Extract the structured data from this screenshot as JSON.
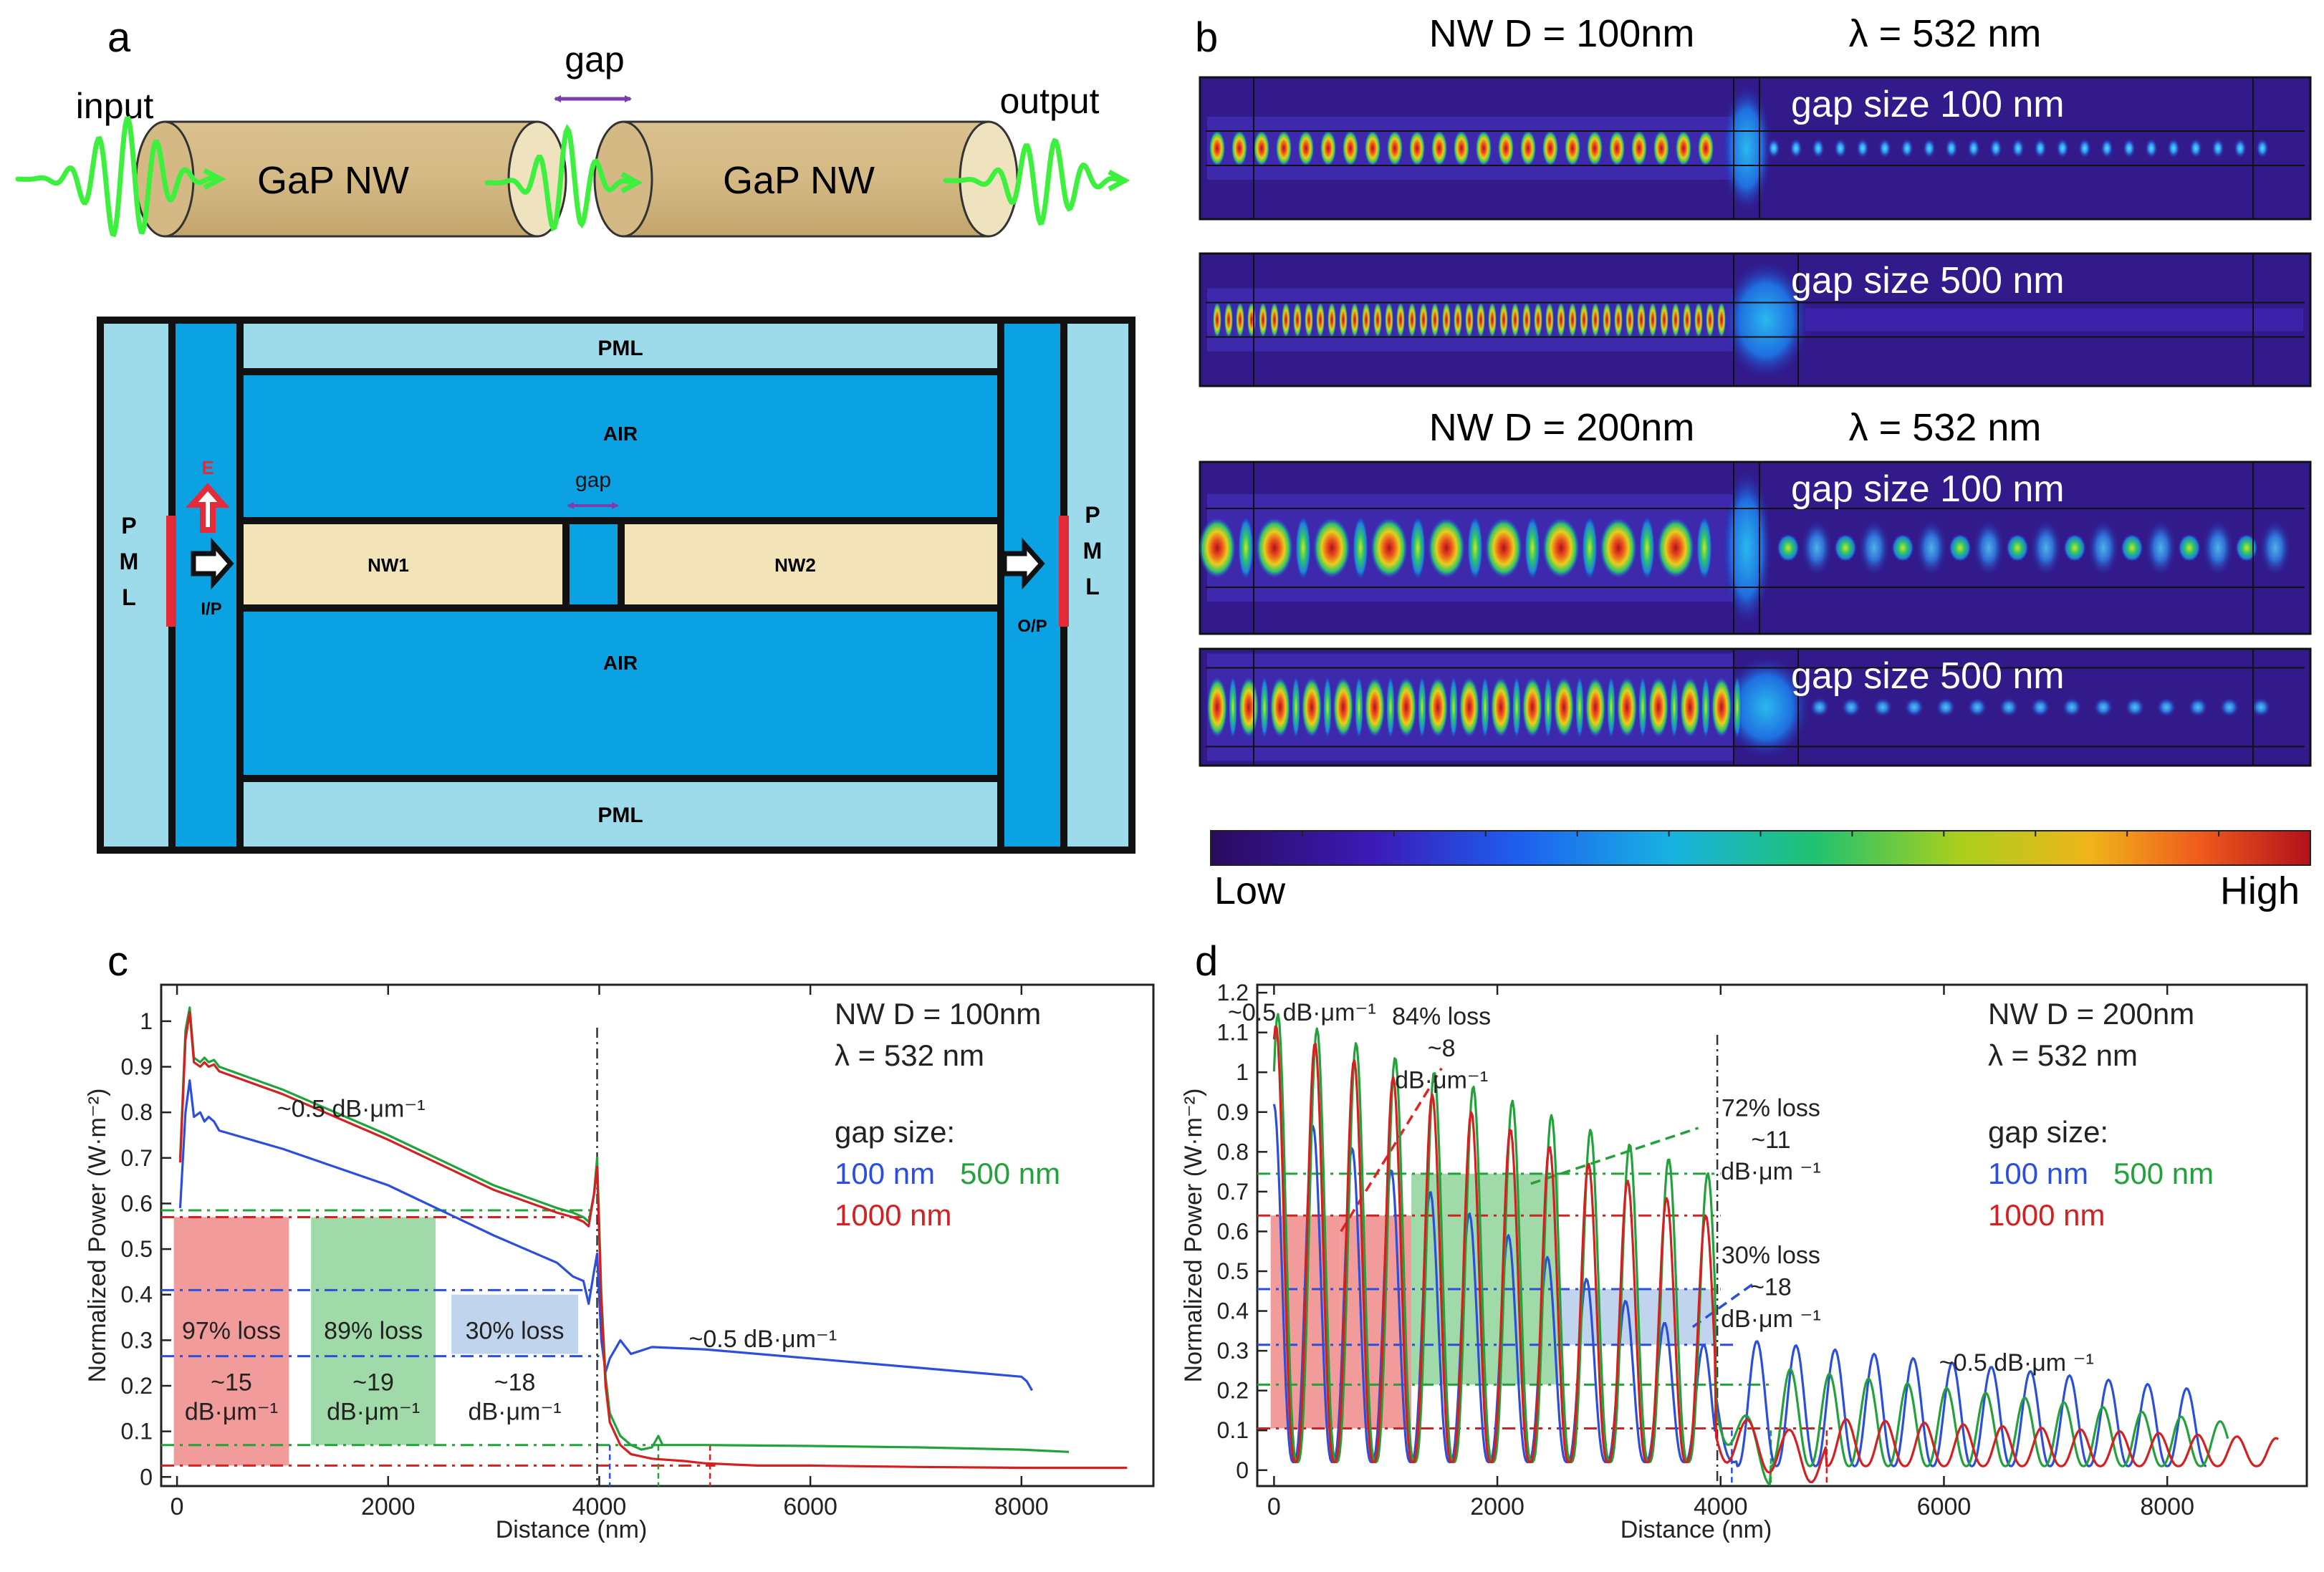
{
  "panel_labels": {
    "a": "a",
    "b": "b",
    "c": "c",
    "d": "d"
  },
  "schematic": {
    "input": "input",
    "gap": "gap",
    "output": "output",
    "nw1": "GaP NW",
    "nw2": "GaP NW"
  },
  "simulation_domain": {
    "pml_top": "PML",
    "pml_bottom": "PML",
    "pml_left": [
      "P",
      "M",
      "L"
    ],
    "pml_right": [
      "P",
      "M",
      "L"
    ],
    "air_top": "AIR",
    "air_bottom": "AIR",
    "gap": "gap",
    "nw1": "NW1",
    "nw2": "NW2",
    "e_field": "E",
    "input_port": "I/P",
    "output_port": "O/P"
  },
  "field_maps": {
    "header_100": {
      "diameter": "NW D = 100nm",
      "wavelength": "λ = 532 nm"
    },
    "header_200": {
      "diameter": "NW D = 200nm",
      "wavelength": "λ = 532 nm"
    },
    "maps": [
      {
        "label": "gap size 100 nm",
        "nw_d": 100
      },
      {
        "label": "gap size 500 nm",
        "nw_d": 100
      },
      {
        "label": "gap size 100 nm",
        "nw_d": 200
      },
      {
        "label": "gap size 500 nm",
        "nw_d": 200
      }
    ],
    "colorbar": {
      "low": "Low",
      "high": "High"
    }
  },
  "chart_data": [
    {
      "id": "c",
      "type": "line",
      "xlabel": "Distance (nm)",
      "ylabel": "Normalized Power (W·m⁻²)",
      "xlim": [
        -150,
        9250
      ],
      "ylim": [
        -0.02,
        1.08
      ],
      "xticks": [
        0,
        2000,
        4000,
        6000,
        8000
      ],
      "yticks": [
        0,
        0.1,
        0.2,
        0.3,
        0.4,
        0.5,
        0.6,
        0.7,
        0.8,
        0.9,
        1
      ],
      "info": {
        "d": "NW D = 100nm",
        "lambda": "λ = 532 nm",
        "gap_title": "gap size:",
        "g100": "100 nm",
        "g500": "500 nm",
        "g1000": "1000 nm"
      },
      "series": [
        {
          "name": "100 nm",
          "color": "#2b4fdc",
          "x": [
            30,
            80,
            120,
            160,
            220,
            260,
            300,
            350,
            400,
            1000,
            2000,
            3000,
            3600,
            3750,
            3850,
            3900,
            3950,
            3980,
            4020,
            4060,
            4100,
            4150,
            4200,
            4300,
            4500,
            5000,
            6000,
            7000,
            8000,
            8050,
            8100
          ],
          "y": [
            0.59,
            0.8,
            0.87,
            0.79,
            0.8,
            0.78,
            0.79,
            0.78,
            0.76,
            0.72,
            0.64,
            0.53,
            0.47,
            0.44,
            0.43,
            0.38,
            0.45,
            0.49,
            0.3,
            0.23,
            0.26,
            0.28,
            0.3,
            0.27,
            0.285,
            0.28,
            0.26,
            0.24,
            0.22,
            0.21,
            0.19
          ]
        },
        {
          "name": "500 nm",
          "color": "#22a23a",
          "x": [
            30,
            80,
            120,
            160,
            220,
            260,
            300,
            350,
            400,
            1000,
            2000,
            3000,
            3600,
            3750,
            3850,
            3900,
            3950,
            3980,
            4020,
            4060,
            4100,
            4200,
            4300,
            4400,
            4500,
            4560,
            4600,
            5000,
            6000,
            7000,
            8000,
            8450
          ],
          "y": [
            0.7,
            0.98,
            1.03,
            0.92,
            0.91,
            0.92,
            0.91,
            0.915,
            0.9,
            0.85,
            0.75,
            0.64,
            0.59,
            0.58,
            0.57,
            0.56,
            0.62,
            0.7,
            0.4,
            0.22,
            0.14,
            0.09,
            0.07,
            0.06,
            0.065,
            0.09,
            0.07,
            0.07,
            0.068,
            0.065,
            0.06,
            0.055
          ]
        },
        {
          "name": "1000 nm",
          "color": "#d42020",
          "x": [
            30,
            80,
            120,
            160,
            220,
            260,
            300,
            350,
            400,
            1000,
            2000,
            3000,
            3600,
            3750,
            3850,
            3900,
            3950,
            3980,
            4020,
            4060,
            4100,
            4200,
            4300,
            4500,
            4800,
            5000,
            5500,
            6000,
            7000,
            8000,
            9000
          ],
          "y": [
            0.69,
            0.96,
            1.02,
            0.91,
            0.9,
            0.91,
            0.9,
            0.905,
            0.89,
            0.84,
            0.74,
            0.63,
            0.58,
            0.57,
            0.56,
            0.55,
            0.62,
            0.68,
            0.38,
            0.2,
            0.12,
            0.07,
            0.05,
            0.04,
            0.035,
            0.03,
            0.025,
            0.025,
            0.022,
            0.02,
            0.02
          ]
        }
      ],
      "loss_boxes": [
        {
          "x0": -30,
          "x1": 1060,
          "y0": 0.025,
          "y1": 0.57,
          "color": "#f08a8a",
          "loss": "97% loss",
          "rate1": "~15",
          "rate2": "dB·μm⁻¹"
        },
        {
          "x0": 1270,
          "x1": 2450,
          "y0": 0.07,
          "y1": 0.57,
          "color": "#8fd39a",
          "loss": "89% loss",
          "rate1": "~19",
          "rate2": "dB·μm⁻¹"
        },
        {
          "x0": 2600,
          "x1": 3800,
          "y0": 0.27,
          "y1": 0.4,
          "color": "#b6cdea",
          "loss": "30% loss",
          "rate1": "~18",
          "rate2": "dB·μm⁻¹"
        }
      ],
      "annotations": [
        {
          "text": "~0.5 dB·μm⁻¹",
          "x": 1650,
          "y": 0.79
        },
        {
          "text": "~0.5 dB·μm⁻¹",
          "x": 5550,
          "y": 0.285
        }
      ]
    },
    {
      "id": "d",
      "type": "line",
      "xlabel": "Distance (nm)",
      "ylabel": "Normalized Power (W·m⁻²)",
      "xlim": [
        -150,
        9250
      ],
      "ylim": [
        -0.04,
        1.22
      ],
      "xticks": [
        0,
        2000,
        4000,
        6000,
        8000
      ],
      "yticks": [
        0,
        0.1,
        0.2,
        0.3,
        0.4,
        0.5,
        0.6,
        0.7,
        0.8,
        0.9,
        1,
        1.1,
        1.2
      ],
      "info": {
        "d": "NW D = 200nm",
        "lambda": "λ = 532 nm",
        "gap_title": "gap size:",
        "g100": "100 nm",
        "g500": "500 nm",
        "g1000": "1000 nm"
      },
      "series": [
        {
          "name": "100 nm",
          "color": "#2b4fdc",
          "period": 350,
          "before": [
            0.92,
            0.3
          ],
          "after_start": 4150,
          "after": [
            0.33,
            0.2
          ],
          "after_end": 8350,
          "phase": 0
        },
        {
          "name": "500 nm",
          "color": "#22a23a",
          "period": 350,
          "before": [
            1.15,
            0.74
          ],
          "after_start": 4450,
          "after": [
            0.26,
            0.12
          ],
          "after_end": 8550,
          "phase": 0.1
        },
        {
          "name": "1000 nm",
          "color": "#d42020",
          "period": 350,
          "before": [
            1.12,
            0.63
          ],
          "after_start": 4950,
          "after": [
            0.13,
            0.08
          ],
          "after_end": 9000,
          "phase": 0.05
        }
      ],
      "loss_boxes": [
        {
          "x0": -30,
          "x1": 600,
          "y0": 0.105,
          "y1": 0.64,
          "color": "#f08a8a"
        },
        {
          "x0": 600,
          "x1": 1230,
          "y0": 0.105,
          "y1": 0.64,
          "color": "#f08a8a"
        },
        {
          "x0": 1230,
          "x1": 2550,
          "y0": 0.215,
          "y1": 0.745,
          "color": "#8fd39a"
        },
        {
          "x0": 2550,
          "x1": 3960,
          "y0": 0.315,
          "y1": 0.455,
          "color": "#b6cdea"
        }
      ],
      "annotations": [
        {
          "text": "~0.5 dB·μm⁻¹",
          "x": 250,
          "y": 1.13
        },
        {
          "text": "84% loss",
          "x": 1500,
          "y": 1.12
        },
        {
          "text": "~8",
          "x": 1500,
          "y": 1.04
        },
        {
          "text": "dB·μm⁻¹",
          "x": 1500,
          "y": 0.96
        },
        {
          "text": "72% loss",
          "x": 4450,
          "y": 0.89
        },
        {
          "text": "~11",
          "x": 4450,
          "y": 0.81
        },
        {
          "text": "dB·μm ⁻¹",
          "x": 4450,
          "y": 0.73
        },
        {
          "text": "30% loss",
          "x": 4450,
          "y": 0.52
        },
        {
          "text": "~18",
          "x": 4450,
          "y": 0.44
        },
        {
          "text": "dB·μm ⁻¹",
          "x": 4450,
          "y": 0.36
        },
        {
          "text": "~0.5 dB·μm ⁻¹",
          "x": 6650,
          "y": 0.25
        }
      ]
    }
  ]
}
